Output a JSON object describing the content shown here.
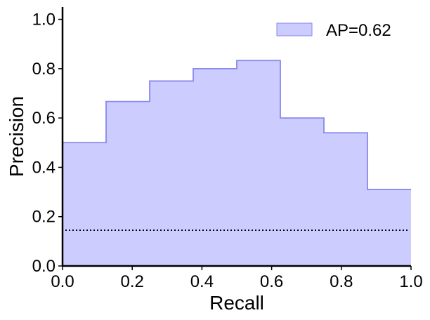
{
  "chart_data": {
    "type": "area",
    "xlabel": "Recall",
    "ylabel": "Precision",
    "xlim": [
      0.0,
      1.0
    ],
    "ylim": [
      0.0,
      1.05
    ],
    "x_ticks": [
      "0.0",
      "0.2",
      "0.4",
      "0.6",
      "0.8",
      "1.0"
    ],
    "y_ticks": [
      "0.0",
      "0.2",
      "0.4",
      "0.6",
      "0.8",
      "1.0"
    ],
    "grid": false,
    "legend_position": "top-right",
    "series": [
      {
        "name": "AP=0.62",
        "style": "step-post filled",
        "color": "#8888ee",
        "fill_color": "#ccccff",
        "x": [
          0.0,
          0.125,
          0.25,
          0.375,
          0.5,
          0.625,
          0.75,
          0.875,
          1.0
        ],
        "y": [
          0.5,
          0.667,
          0.75,
          0.8,
          0.833,
          0.6,
          0.54,
          0.31,
          0.31
        ]
      }
    ],
    "baseline": {
      "style": "dotted",
      "color": "#000000",
      "y": 0.145,
      "x_range": [
        0.0,
        1.0
      ]
    }
  }
}
